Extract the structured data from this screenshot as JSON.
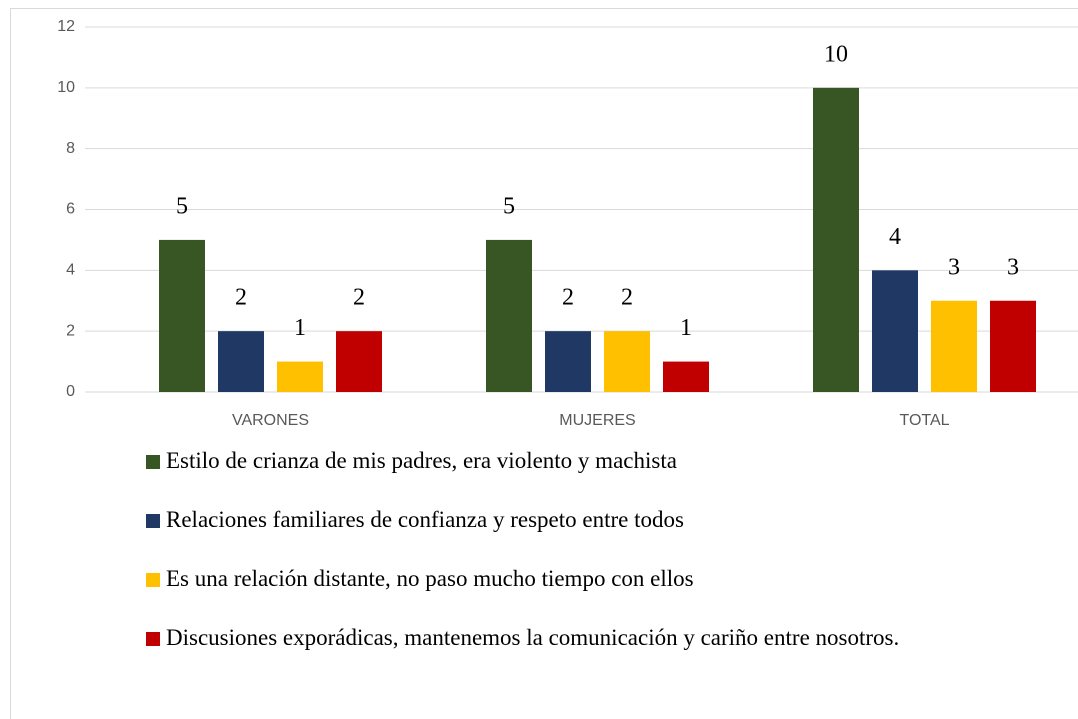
{
  "chart_data": {
    "type": "bar",
    "categories": [
      "VARONES",
      "MUJERES",
      "TOTAL"
    ],
    "series": [
      {
        "name": "Estilo de crianza de mis padres, era violento y machista",
        "color": "#375623",
        "values": [
          5,
          5,
          10
        ]
      },
      {
        "name": "Relaciones familiares de confianza y respeto entre todos",
        "color": "#1f3864",
        "values": [
          2,
          2,
          4
        ]
      },
      {
        "name": "Es una relación distante, no paso mucho tiempo con ellos",
        "color": "#ffc000",
        "values": [
          1,
          2,
          3
        ]
      },
      {
        "name": "Discusiones exporádicas, mantenemos la comunicación y cariño entre nosotros.",
        "color": "#c00000",
        "values": [
          2,
          1,
          3
        ]
      }
    ],
    "ylim": [
      0,
      12
    ],
    "yticks": [
      0,
      2,
      4,
      6,
      8,
      10,
      12
    ],
    "grid": true,
    "legend": "bottom"
  }
}
